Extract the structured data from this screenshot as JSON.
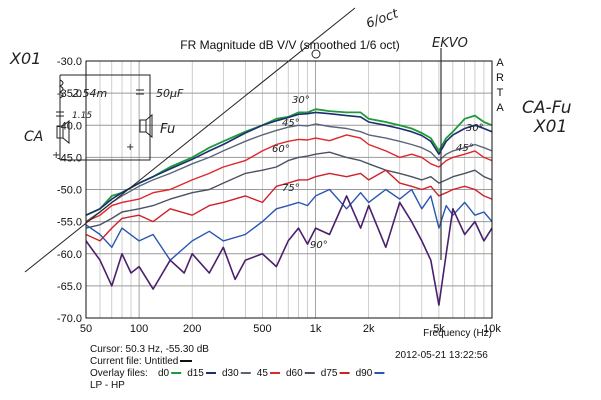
{
  "chart_data": {
    "type": "line",
    "title": "FR Magnitude dB V/V (smoothed 1/6 oct)",
    "watermark": "ARTA",
    "xlabel": "Frequency (Hz)",
    "x_scale": "log",
    "xlim": [
      50,
      10000
    ],
    "ylim": [
      -70,
      -30
    ],
    "x_ticks": [
      {
        "value": 50,
        "label": "50"
      },
      {
        "value": 100,
        "label": "100"
      },
      {
        "value": 200,
        "label": "200"
      },
      {
        "value": 500,
        "label": "500"
      },
      {
        "value": 1000,
        "label": "1k"
      },
      {
        "value": 2000,
        "label": "2k"
      },
      {
        "value": 5000,
        "label": "5k"
      },
      {
        "value": 10000,
        "label": "10k"
      }
    ],
    "y_ticks": [
      {
        "value": -30,
        "label": "-30.0"
      },
      {
        "value": -35,
        "label": "-35.0"
      },
      {
        "value": -40,
        "label": "-40.0"
      },
      {
        "value": -45,
        "label": "-45.0"
      },
      {
        "value": -50,
        "label": "-50.0"
      },
      {
        "value": -55,
        "label": "-55.0"
      },
      {
        "value": -60,
        "label": "-60.0"
      },
      {
        "value": -65,
        "label": "-65.0"
      },
      {
        "value": -70,
        "label": "-70.0"
      }
    ],
    "grid": true,
    "series": [
      {
        "name": "d0",
        "color": "#1f9a3a",
        "width": 1.8,
        "x": [
          50,
          60,
          70,
          80,
          100,
          120,
          150,
          200,
          250,
          300,
          400,
          500,
          600,
          700,
          800,
          900,
          1000,
          1200,
          1500,
          1800,
          2000,
          2500,
          3000,
          3500,
          4000,
          4500,
          5000,
          5500,
          6000,
          7000,
          8000,
          9000,
          10000
        ],
        "y": [
          -54,
          -53,
          -51,
          -50.5,
          -49,
          -48,
          -46.5,
          -45,
          -43.5,
          -42.5,
          -41,
          -40,
          -39,
          -38.7,
          -38,
          -38,
          -37.5,
          -37.8,
          -38,
          -38,
          -39,
          -39.5,
          -40,
          -40.5,
          -41.2,
          -42,
          -44,
          -42,
          -41,
          -39,
          -38.5,
          -39.5,
          -40
        ]
      },
      {
        "name": "d15",
        "color": "#1c2e6e",
        "width": 1.6,
        "x": [
          50,
          60,
          70,
          80,
          100,
          120,
          150,
          200,
          250,
          300,
          400,
          500,
          600,
          700,
          800,
          900,
          1000,
          1200,
          1500,
          1800,
          2000,
          2500,
          3000,
          3500,
          4000,
          4500,
          5000,
          5500,
          6000,
          7000,
          8000,
          9000,
          10000
        ],
        "y": [
          -54,
          -53,
          -51.5,
          -50.5,
          -49,
          -48,
          -46.8,
          -45.3,
          -44,
          -43,
          -41.2,
          -40,
          -39.3,
          -38.8,
          -38.3,
          -38.2,
          -38,
          -38.2,
          -38.5,
          -38.7,
          -39.5,
          -40,
          -40.5,
          -41,
          -41.6,
          -42.5,
          -44.5,
          -42.5,
          -41.5,
          -40.5,
          -40,
          -40.5,
          -41
        ]
      },
      {
        "name": "d30",
        "color": "#5a6678",
        "width": 1.4,
        "x": [
          50,
          60,
          70,
          80,
          100,
          120,
          150,
          200,
          250,
          300,
          400,
          500,
          600,
          700,
          800,
          900,
          1000,
          1200,
          1500,
          1800,
          2000,
          2500,
          3000,
          3500,
          4000,
          4500,
          5000,
          5500,
          6000,
          7000,
          8000,
          9000,
          10000
        ],
        "y": [
          -55,
          -53.5,
          -52,
          -51,
          -49.5,
          -48.5,
          -47.5,
          -46,
          -45,
          -44,
          -42.5,
          -41.5,
          -40.8,
          -40.3,
          -40,
          -40.1,
          -39.8,
          -40.2,
          -40.5,
          -41,
          -41.5,
          -42,
          -42.5,
          -43,
          -43.5,
          -44.2,
          -45.5,
          -44.5,
          -44,
          -43.5,
          -43,
          -43.5,
          -44
        ]
      },
      {
        "name": "45",
        "color": "#e0262b",
        "width": 1.4,
        "x": [
          50,
          60,
          70,
          80,
          100,
          120,
          150,
          200,
          250,
          300,
          400,
          500,
          600,
          700,
          800,
          900,
          1000,
          1200,
          1500,
          1800,
          2000,
          2500,
          3000,
          3500,
          4000,
          4500,
          5000,
          5500,
          6000,
          7000,
          8000,
          9000,
          10000
        ],
        "y": [
          -55,
          -54,
          -52.5,
          -52,
          -51.5,
          -50.5,
          -50,
          -48.5,
          -47.5,
          -46.5,
          -45.5,
          -44,
          -43,
          -42.5,
          -42.2,
          -42.3,
          -42,
          -42.4,
          -41.5,
          -42,
          -43,
          -44,
          -45,
          -44.5,
          -45,
          -46,
          -46.5,
          -45.5,
          -45,
          -44.5,
          -44,
          -45,
          -45.5
        ]
      },
      {
        "name": "d60",
        "color": "#4a5262",
        "width": 1.4,
        "x": [
          50,
          60,
          70,
          80,
          100,
          120,
          150,
          200,
          250,
          300,
          400,
          500,
          600,
          700,
          800,
          900,
          1000,
          1200,
          1500,
          1800,
          2000,
          2500,
          3000,
          3500,
          4000,
          4500,
          5000,
          5500,
          6000,
          7000,
          8000,
          9000,
          10000
        ],
        "y": [
          -56,
          -55.5,
          -54.5,
          -53.5,
          -53,
          -52.5,
          -51.5,
          -50.5,
          -50,
          -49,
          -47.5,
          -47,
          -46.5,
          -45.5,
          -45,
          -44.8,
          -44.5,
          -44.2,
          -45,
          -45.5,
          -46,
          -47,
          -47.5,
          -48,
          -48.5,
          -48,
          -49,
          -48.5,
          -48,
          -47.5,
          -47,
          -48,
          -48.5
        ]
      },
      {
        "name": "d75",
        "color": "#d0202a",
        "width": 1.4,
        "x": [
          50,
          60,
          70,
          80,
          100,
          120,
          150,
          200,
          250,
          300,
          400,
          500,
          600,
          700,
          800,
          900,
          1000,
          1200,
          1500,
          1800,
          2000,
          2500,
          3000,
          3500,
          4000,
          4500,
          5000,
          5500,
          6000,
          7000,
          8000,
          9000,
          10000
        ],
        "y": [
          -57,
          -58,
          -56,
          -54.5,
          -54,
          -55,
          -53,
          -54,
          -52.5,
          -52,
          -51,
          -52,
          -49.5,
          -49,
          -48.5,
          -48.5,
          -48,
          -47.5,
          -48,
          -47.5,
          -48.5,
          -47,
          -49,
          -49.5,
          -50,
          -49.5,
          -51,
          -50.5,
          -50,
          -49.5,
          -50,
          -51,
          -51.5
        ]
      },
      {
        "name": "d90",
        "color": "#2a56b0",
        "width": 1.4,
        "x": [
          50,
          60,
          70,
          80,
          100,
          120,
          150,
          200,
          250,
          300,
          400,
          500,
          600,
          700,
          800,
          900,
          1000,
          1200,
          1500,
          1800,
          2000,
          2500,
          3000,
          3500,
          4000,
          4500,
          5000,
          5500,
          6000,
          7000,
          8000,
          9000,
          10000
        ],
        "y": [
          -55.5,
          -57,
          -59,
          -56,
          -58,
          -57,
          -61,
          -58,
          -56.5,
          -58,
          -57,
          -55,
          -53,
          -52.5,
          -52,
          -52.5,
          -51,
          -50,
          -53,
          -50.5,
          -52,
          -50,
          -51.5,
          -50,
          -53,
          -51,
          -56,
          -52.5,
          -54,
          -52,
          -54,
          -53.5,
          -55
        ]
      },
      {
        "name": "",
        "color": "#4a1f6e",
        "width": 1.6,
        "x": [
          50,
          60,
          70,
          80,
          90,
          100,
          120,
          150,
          180,
          200,
          250,
          300,
          350,
          400,
          500,
          600,
          700,
          800,
          900,
          1000,
          1200,
          1500,
          1800,
          2000,
          2500,
          3000,
          3500,
          4000,
          4500,
          5000,
          5500,
          6000,
          7000,
          8000,
          9000,
          10000
        ],
        "y": [
          -58,
          -61,
          -65,
          -60,
          -63,
          -62,
          -65.5,
          -61,
          -63,
          -60,
          -63,
          -59,
          -64,
          -61,
          -60,
          -62,
          -58,
          -56,
          -58.5,
          -56,
          -57,
          -51,
          -56,
          -52.5,
          -59,
          -52,
          -55,
          -58,
          -61,
          -68,
          -60,
          -53,
          -57,
          -55,
          -58,
          -56
        ]
      }
    ],
    "annotations": {
      "slope_label": "6/oct",
      "angle_labels": [
        "30°",
        "45°",
        "60°",
        "75°",
        "90°",
        "30°",
        "45°"
      ],
      "marker_label": "EKVO",
      "right_notes": [
        "CA-Fu",
        "X01"
      ],
      "left_title": "X01",
      "circuit_labels": [
        "2.54m",
        "1.15",
        "50µF",
        "CA",
        "Fu",
        "+",
        "+"
      ]
    },
    "status": {
      "cursor": "Cursor: 50.3 Hz, -55.30 dB",
      "current_file": "Current file: Untitled",
      "overlay_prefix": "Overlay files:",
      "overlay_items": [
        {
          "label": "d0",
          "color": "#1f9a3a"
        },
        {
          "label": "d15",
          "color": "#1c2e6e"
        },
        {
          "label": "d30",
          "color": "#5a6678"
        },
        {
          "label": "45",
          "color": "#e0262b"
        },
        {
          "label": "d60",
          "color": "#4a5262"
        },
        {
          "label": "d75",
          "color": "#d0202a"
        },
        {
          "label": "d90",
          "color": "#2a56b0"
        }
      ],
      "lp_hp": "LP - HP",
      "datetime": "2012-05-21  13:22:56"
    }
  }
}
